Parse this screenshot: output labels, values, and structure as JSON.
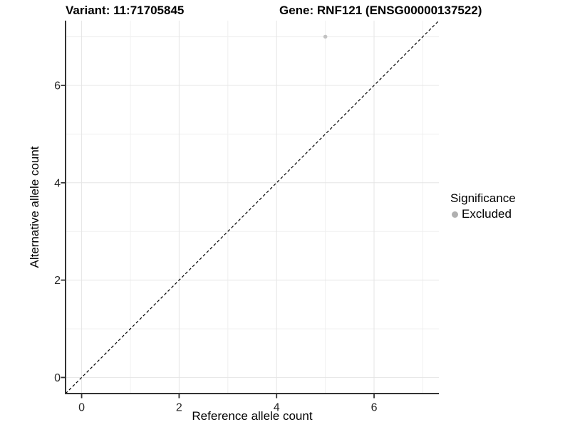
{
  "header": {
    "variant_title": "Variant: 11:71705845",
    "gene_title": "Gene: RNF121 (ENSG00000137522)"
  },
  "colors": {
    "background": "#ffffff",
    "grid_major": "#e5e5e5",
    "grid_minor": "#f0f0f0",
    "axis_line": "#333333",
    "tick_label": "#262626",
    "title_text": "#000000",
    "identity_line": "#000000",
    "excluded_point": "#c2c2c2",
    "legend_swatch": "#b0b0b0"
  },
  "chart_data": {
    "type": "scatter",
    "title_left": "Variant: 11:71705845",
    "title_right": "Gene: RNF121 (ENSG00000137522)",
    "xlabel": "Reference allele count",
    "ylabel": "Alternative allele count",
    "xlim": [
      -0.33,
      7.33
    ],
    "ylim": [
      -0.33,
      7.33
    ],
    "x_ticks": [
      0,
      2,
      4,
      6
    ],
    "y_ticks": [
      0,
      2,
      4,
      6
    ],
    "x_minor_gridlines": [
      1,
      3,
      5,
      7
    ],
    "y_minor_gridlines": [
      1,
      3,
      5,
      7
    ],
    "grid": "major and minor, light gray on white",
    "reference_line": {
      "type": "identity y=x",
      "style": "dashed",
      "color": "#000000"
    },
    "series": [
      {
        "name": "Excluded",
        "color": "#c2c2c2",
        "points": [
          {
            "x": 5,
            "y": 7
          }
        ]
      }
    ],
    "legend": {
      "title": "Significance",
      "position": "right",
      "items": [
        {
          "label": "Excluded",
          "color": "#b0b0b0"
        }
      ]
    }
  }
}
